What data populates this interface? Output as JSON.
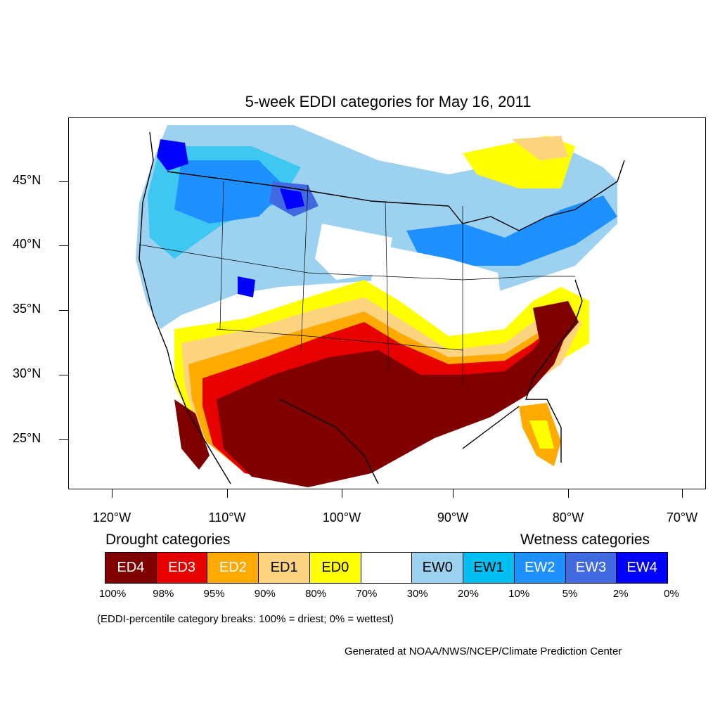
{
  "title": "5-week EDDI categories for May 16, 2011",
  "lat_labels": [
    "45°N",
    "40°N",
    "35°N",
    "30°N",
    "25°N"
  ],
  "lon_labels": [
    "120°W",
    "110°W",
    "100°W",
    "90°W",
    "80°W",
    "70°W"
  ],
  "legend": {
    "drought_heading": "Drought categories",
    "wetness_heading": "Wetness categories",
    "categories": [
      {
        "label": "ED4",
        "color": "#800000",
        "text_color": "#ffffff"
      },
      {
        "label": "ED3",
        "color": "#e60000",
        "text_color": "#ffffff"
      },
      {
        "label": "ED2",
        "color": "#ffaa00",
        "text_color": "#ffffff"
      },
      {
        "label": "ED1",
        "color": "#fcd37f",
        "text_color": "#000000"
      },
      {
        "label": "ED0",
        "color": "#ffff00",
        "text_color": "#000000"
      },
      {
        "label": "",
        "color": "#ffffff",
        "text_color": "#000000"
      },
      {
        "label": "EW0",
        "color": "#9cd1f0",
        "text_color": "#000000"
      },
      {
        "label": "EW1",
        "color": "#00bff2",
        "text_color": "#000000"
      },
      {
        "label": "EW2",
        "color": "#1e90ff",
        "text_color": "#ffffff"
      },
      {
        "label": "EW3",
        "color": "#4169e1",
        "text_color": "#ffffff"
      },
      {
        "label": "EW4",
        "color": "#0000ff",
        "text_color": "#ffffff"
      }
    ],
    "breaks": [
      "100%",
      "98%",
      "95%",
      "90%",
      "80%",
      "70%",
      "30%",
      "20%",
      "10%",
      "5%",
      "2%",
      "0%"
    ]
  },
  "note": "(EDDI-percentile category breaks: 100% = driest; 0% = wettest)",
  "credit": "Generated at NOAA/NWS/NCEP/Climate Prediction Center",
  "colors": {
    "ED4": "#800000",
    "ED3": "#e60000",
    "ED2": "#ffaa00",
    "ED1": "#fcd37f",
    "ED0": "#ffff00",
    "EW0": "#9cd1f0",
    "EW1": "#00bff2",
    "EW2": "#1e90ff",
    "EW3": "#4169e1",
    "EW4": "#0000ff"
  }
}
